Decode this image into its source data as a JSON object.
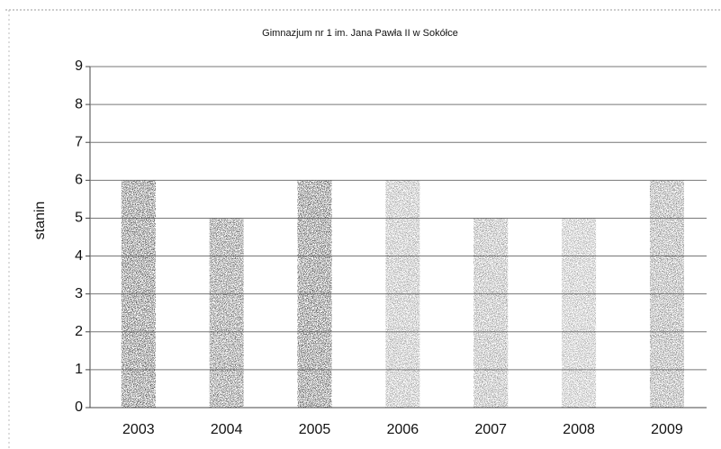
{
  "chart_data": {
    "type": "bar",
    "title": "Gimnazjum nr 1 im. Jana Pawła II w Sokółce",
    "ylabel": "stanin",
    "categories": [
      "2003",
      "2004",
      "2005",
      "2006",
      "2007",
      "2008",
      "2009"
    ],
    "values": [
      6,
      5,
      6,
      6,
      5,
      5,
      6
    ],
    "color": "#555555",
    "ylim": [
      0,
      9
    ],
    "yticks": [
      0,
      1,
      2,
      3,
      4,
      5,
      6,
      7,
      8,
      9
    ],
    "grid": true
  }
}
